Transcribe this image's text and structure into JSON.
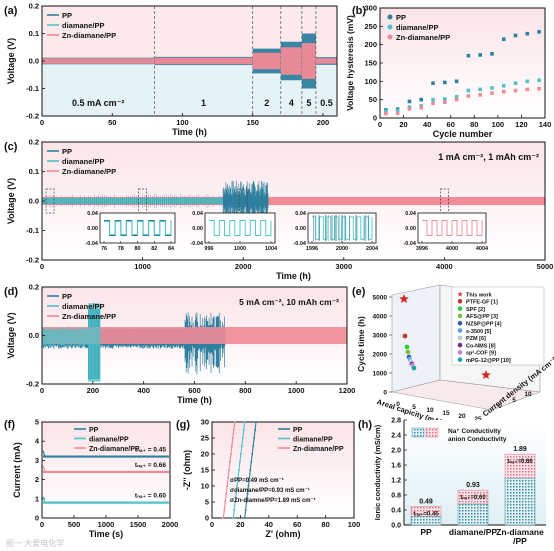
{
  "colors": {
    "pp": "#2f7f9f",
    "diamane": "#4fc3c7",
    "zn": "#f08a97",
    "panel_bg_pink": "#fbe9ec",
    "panel_bg_blue": "#e6f3f6",
    "dash": "#555555"
  },
  "watermark": "图一 大爱电化学",
  "chart_data": [
    {
      "panel": "a",
      "type": "line",
      "xlabel": "Time (h)",
      "ylabel": "Voltage (V)",
      "xlim": [
        0,
        210
      ],
      "ylim": [
        -0.2,
        0.2
      ],
      "xticks": [
        0,
        50,
        100,
        150,
        200
      ],
      "yticks": [
        -0.2,
        -0.1,
        0.0,
        0.1,
        0.2
      ],
      "ytick_labels": [
        "-0.2",
        "-0.1",
        "0.0",
        "0.1",
        "0.2"
      ],
      "legend": [
        "PP",
        "diamane/PP",
        "Zn-diamane/PP"
      ],
      "segments": [
        {
          "label": "0.5 mA cm⁻²",
          "start": 0,
          "end": 80,
          "amp_pp": 0.012,
          "amp_zn": 0.01
        },
        {
          "label": "1",
          "start": 80,
          "end": 150,
          "amp_pp": 0.015,
          "amp_zn": 0.012
        },
        {
          "label": "2",
          "start": 150,
          "end": 170,
          "amp_pp": 0.045,
          "amp_zn": 0.03
        },
        {
          "label": "4",
          "start": 170,
          "end": 185,
          "amp_pp": 0.07,
          "amp_zn": 0.05
        },
        {
          "label": "5",
          "start": 185,
          "end": 195,
          "amp_pp": 0.1,
          "amp_zn": 0.065
        },
        {
          "label": "0.5",
          "start": 195,
          "end": 210,
          "amp_pp": 0.014,
          "amp_zn": 0.01
        }
      ]
    },
    {
      "panel": "b",
      "type": "scatter",
      "xlabel": "Cycle number",
      "ylabel": "Voltage hysteresis (mV)",
      "xlim": [
        0,
        140
      ],
      "ylim": [
        0,
        300
      ],
      "xticks": [
        0,
        20,
        40,
        60,
        80,
        100,
        120,
        140
      ],
      "yticks": [
        0,
        50,
        100,
        150,
        200,
        250,
        300
      ],
      "series": [
        {
          "name": "PP",
          "points": [
            [
              5,
              22
            ],
            [
              15,
              24
            ],
            [
              25,
              45
            ],
            [
              35,
              50
            ],
            [
              45,
              95
            ],
            [
              55,
              97
            ],
            [
              65,
              100
            ],
            [
              75,
              170
            ],
            [
              85,
              172
            ],
            [
              95,
              175
            ],
            [
              105,
              215
            ],
            [
              115,
              225
            ],
            [
              125,
              230
            ],
            [
              135,
              235
            ]
          ]
        },
        {
          "name": "diamane/PP",
          "points": [
            [
              5,
              18
            ],
            [
              15,
              20
            ],
            [
              25,
              30
            ],
            [
              35,
              33
            ],
            [
              45,
              50
            ],
            [
              55,
              52
            ],
            [
              65,
              58
            ],
            [
              75,
              75
            ],
            [
              85,
              78
            ],
            [
              95,
              82
            ],
            [
              105,
              88
            ],
            [
              115,
              95
            ],
            [
              125,
              100
            ],
            [
              135,
              103
            ]
          ]
        },
        {
          "name": "Zn-diamane/PP",
          "points": [
            [
              5,
              12
            ],
            [
              15,
              13
            ],
            [
              25,
              25
            ],
            [
              35,
              28
            ],
            [
              45,
              40
            ],
            [
              55,
              43
            ],
            [
              65,
              50
            ],
            [
              75,
              60
            ],
            [
              85,
              63
            ],
            [
              95,
              68
            ],
            [
              105,
              72
            ],
            [
              115,
              75
            ],
            [
              125,
              78
            ],
            [
              135,
              80
            ]
          ]
        }
      ]
    },
    {
      "panel": "c",
      "type": "line",
      "xlabel": "Time (h)",
      "ylabel": "Voltage (V)",
      "xlim": [
        0,
        5000
      ],
      "ylim": [
        -0.2,
        0.2
      ],
      "xticks": [
        0,
        1000,
        2000,
        3000,
        4000,
        5000
      ],
      "yticks": [
        -0.2,
        -0.1,
        0.0,
        0.1,
        0.2
      ],
      "ytick_labels": [
        "-0.2",
        "-0.1",
        "0.0",
        "0.1",
        "0.2"
      ],
      "legend": [
        "PP",
        "diamane/PP",
        "Zn-diamane/PP"
      ],
      "annotation": "1 mA cm⁻², 1 mAh cm⁻²",
      "insets": [
        {
          "xticks": [
            76,
            78,
            80,
            82,
            84
          ],
          "ylim": [
            -0.04,
            0.04
          ],
          "ytick_labels": [
            "0.04",
            "0.00",
            "-0.04"
          ],
          "series": [
            "PP",
            "diamane/PP"
          ]
        },
        {
          "xticks": [
            996,
            1000,
            1004
          ],
          "ylim": [
            -0.04,
            0.04
          ],
          "ytick_labels": [
            "0.04",
            "0.00",
            "-0.04"
          ],
          "series": [
            "diamane/PP"
          ]
        },
        {
          "xticks": [
            1996,
            2000,
            2004
          ],
          "ylim": [
            -0.04,
            0.04
          ],
          "ytick_labels": [
            "0.04",
            "0.00",
            "-0.04"
          ],
          "series": [
            "diamane/PP"
          ]
        },
        {
          "xticks": [
            3996,
            4000,
            4004
          ],
          "ylim": [
            -0.04,
            0.04
          ],
          "ytick_labels": [
            "0.04",
            "0.00",
            "-0.04"
          ],
          "series": [
            "Zn-diamane/PP"
          ]
        }
      ]
    },
    {
      "panel": "d",
      "type": "line",
      "xlabel": "Time (h)",
      "ylabel": "Voltage (V)",
      "xlim": [
        0,
        1200
      ],
      "ylim": [
        -0.2,
        0.2
      ],
      "xticks": [
        0,
        200,
        400,
        600,
        800,
        1000,
        1200
      ],
      "yticks": [
        -0.2,
        0.0,
        0.2
      ],
      "ytick_labels": [
        "-0.2",
        "0.0",
        "0.2"
      ],
      "legend": [
        "PP",
        "diamane/PP",
        "Zn-diamane/PP"
      ],
      "annotation": "5 mA cm⁻², 10 mAh cm⁻²"
    },
    {
      "panel": "e",
      "type": "scatter",
      "xlabel": "Current density (mA cm⁻²)",
      "ylabel": "Areal capicity (mAh cm⁻²)",
      "zlabel": "Cycle time (h)",
      "zticks": [
        0,
        1000,
        2000,
        3000,
        4000,
        5000
      ],
      "capacity_ticks": [
        0,
        5,
        10,
        15,
        20,
        25
      ],
      "current_ticks": [
        0,
        5,
        10
      ],
      "legend": [
        "This work",
        "PTFE-GF [1]",
        "SPF [2]",
        "AFS@PP [3]",
        "NZSP@PP [4]",
        "s-3500 [5]",
        "PZM [6]",
        "Co-NMS [8]",
        "sp²-COF [9]",
        "mPG-12@PP [10]"
      ],
      "legend_colors": [
        "#d62728",
        "#c0392b",
        "#2ecc40",
        "#7fbf3f",
        "#3b5ba5",
        "#5aa0d8",
        "#b8c7d9",
        "#7a2f8f",
        "#c77dd9",
        "#1fa7a7"
      ]
    },
    {
      "panel": "f",
      "type": "line",
      "xlabel": "Time (s)",
      "ylabel": "Current (mA)",
      "xlim": [
        0,
        2000
      ],
      "ylim": [
        0,
        5
      ],
      "xticks": [
        0,
        500,
        1000,
        1500,
        2000
      ],
      "yticks": [
        0,
        1,
        2,
        3,
        4,
        5
      ],
      "series": [
        {
          "name": "PP",
          "value": 3.2,
          "t_label": "tₙₐ₊ = 0.45"
        },
        {
          "name": "Zn-diamane/PP",
          "value": 2.4,
          "t_label": "tₙₐ₊ = 0.66"
        },
        {
          "name": "diamane/PP",
          "value": 0.8,
          "t_label": "tₙₐ₊ = 0.60"
        }
      ]
    },
    {
      "panel": "g",
      "type": "line",
      "xlabel": "Z' (ohm)",
      "ylabel": "-Z'' (ohm)",
      "xlim": [
        0,
        100
      ],
      "ylim": [
        0,
        30
      ],
      "xticks": [
        0,
        20,
        40,
        60,
        80,
        100
      ],
      "yticks": [
        0,
        5,
        10,
        15,
        20,
        25,
        30
      ],
      "legend": [
        "PP",
        "diamane/PP",
        "Zn-diamane/PP"
      ],
      "series": [
        {
          "name": "Zn-diamane/PP",
          "x0": 8,
          "slope_dx": 8
        },
        {
          "name": "diamane/PP",
          "x0": 15,
          "slope_dx": 8
        },
        {
          "name": "PP",
          "x0": 23,
          "slope_dx": 8
        }
      ],
      "annotations": [
        "σPP=0.49 mS cm⁻¹",
        "σdiamane/PP=0.93 mS cm⁻¹",
        "σZn-diamne/PP=1.89 mS cm⁻¹"
      ]
    },
    {
      "panel": "h",
      "type": "bar",
      "ylabel": "Ionic conductivity (mS/cm)",
      "categories": [
        "PP",
        "diamane/PP",
        "Zn-diamane\n/PP"
      ],
      "values": [
        0.49,
        0.93,
        1.89
      ],
      "na_fraction": [
        0.45,
        0.6,
        0.66
      ],
      "value_labels": [
        "0.49",
        "0.93",
        "1.89"
      ],
      "t_labels": [
        "tₙₐ₊=0.45",
        "tₙₐ₊=0.60",
        "tₙₐ₊=0.66"
      ],
      "ylim": [
        0,
        2.8
      ],
      "yticks": [
        0.0,
        0.4,
        0.8,
        1.2,
        1.6,
        2.0,
        2.4,
        2.8
      ],
      "legend": [
        "Na⁺ Conductivity",
        "anion Conductivity"
      ]
    }
  ]
}
